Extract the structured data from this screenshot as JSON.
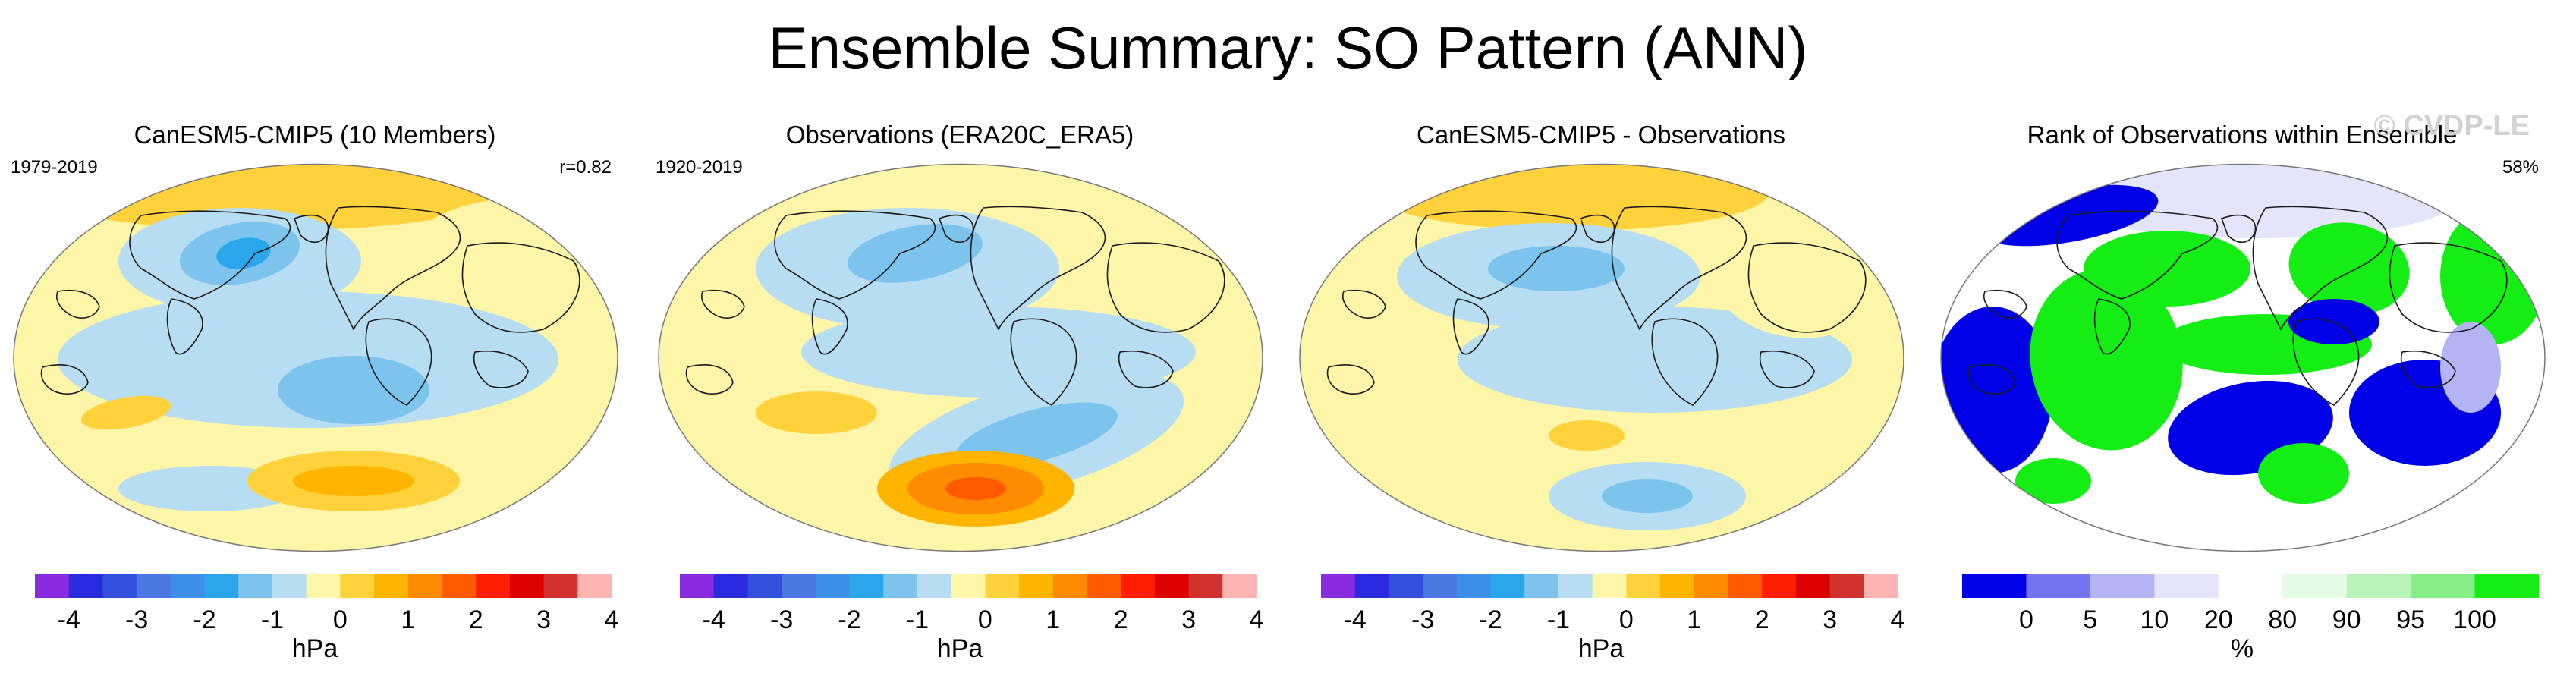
{
  "title": "Ensemble Summary: SO Pattern (ANN)",
  "watermark": "© CVDP-LE",
  "colors": {
    "diverging": [
      "#8a2be2",
      "#2a2ae0",
      "#3050dd",
      "#4a78e0",
      "#3c8ee8",
      "#2aa6ec",
      "#7cc4ee",
      "#b6ddf2",
      "#fdf5a8",
      "#ffd23c",
      "#ffb400",
      "#ff8c00",
      "#ff5a00",
      "#ff1e00",
      "#dc0000",
      "#d2322d",
      "#ffb4b4"
    ],
    "rank": [
      "#0000e8",
      "#7474f0",
      "#b4b4f4",
      "#e4e4fa",
      "#ffffff",
      "#e6fbe6",
      "#b8f4b8",
      "#86ee86",
      "#14ee14"
    ]
  },
  "chart_data": [
    {
      "type": "heatmap",
      "title": "CanESM5-CMIP5 (10 Members)",
      "period": "1979-2019",
      "stat": "r=0.82",
      "colorbar": {
        "ticks": [
          "-4",
          "-3",
          "-2",
          "-1",
          "0",
          "1",
          "2",
          "3",
          "4"
        ],
        "label": "hPa"
      },
      "features": [
        {
          "region": "Arctic / North Pole",
          "sign": "positive",
          "hPa": 1.0
        },
        {
          "region": "North Pacific (Aleutian)",
          "sign": "negative",
          "hPa": -2.0
        },
        {
          "region": "Tropical Pacific",
          "sign": "negative",
          "hPa": -0.5
        },
        {
          "region": "South Pacific",
          "sign": "negative",
          "hPa": -1.0
        },
        {
          "region": "Southern Ocean",
          "sign": "positive",
          "hPa": 1.0
        },
        {
          "region": "Eurasia / Atlantic",
          "sign": "positive",
          "hPa": 0.5
        }
      ]
    },
    {
      "type": "heatmap",
      "title": "Observations (ERA20C_ERA5)",
      "period": "1920-2019",
      "stat": "",
      "colorbar": {
        "ticks": [
          "-4",
          "-3",
          "-2",
          "-1",
          "0",
          "1",
          "2",
          "3",
          "4"
        ],
        "label": "hPa"
      },
      "features": [
        {
          "region": "North Pacific",
          "sign": "negative",
          "hPa": -1.0
        },
        {
          "region": "Eastern Pacific",
          "sign": "negative",
          "hPa": -0.5
        },
        {
          "region": "South Pacific",
          "sign": "negative",
          "hPa": -1.0
        },
        {
          "region": "South Pacific High (Amundsen)",
          "sign": "positive",
          "hPa": 2.0
        },
        {
          "region": "Australia / Indian Ocean",
          "sign": "positive",
          "hPa": 0.5
        }
      ]
    },
    {
      "type": "heatmap",
      "title": "CanESM5-CMIP5 - Observations",
      "period": "",
      "stat": "",
      "colorbar": {
        "ticks": [
          "-4",
          "-3",
          "-2",
          "-1",
          "0",
          "1",
          "2",
          "3",
          "4"
        ],
        "label": "hPa"
      },
      "features": [
        {
          "region": "Arctic",
          "sign": "positive",
          "hPa": 1.0
        },
        {
          "region": "North Pacific",
          "sign": "negative",
          "hPa": -1.0
        },
        {
          "region": "Tropical Pacific",
          "sign": "negative",
          "hPa": -0.5
        },
        {
          "region": "South Pacific",
          "sign": "negative",
          "hPa": -1.0
        },
        {
          "region": "South Pacific (west)",
          "sign": "positive",
          "hPa": 1.0
        }
      ]
    },
    {
      "type": "heatmap",
      "title": "Rank of Observations within Ensemble",
      "period": "",
      "stat": "58%",
      "colorbar": {
        "ticks": [
          "0",
          "5",
          "10",
          "20",
          "80",
          "90",
          "95",
          "100"
        ],
        "label": "%"
      },
      "features": [
        {
          "region": "North Atlantic / Eurasia",
          "rank_class": "0-5"
        },
        {
          "region": "Indian Ocean",
          "rank_class": "95-100"
        },
        {
          "region": "Tropical Pacific",
          "rank_class": "95-100"
        },
        {
          "region": "South Pacific",
          "rank_class": "0-5"
        },
        {
          "region": "South Atlantic",
          "rank_class": "0-5"
        },
        {
          "region": "Southern Indian Ocean",
          "rank_class": "95-100"
        }
      ]
    }
  ]
}
